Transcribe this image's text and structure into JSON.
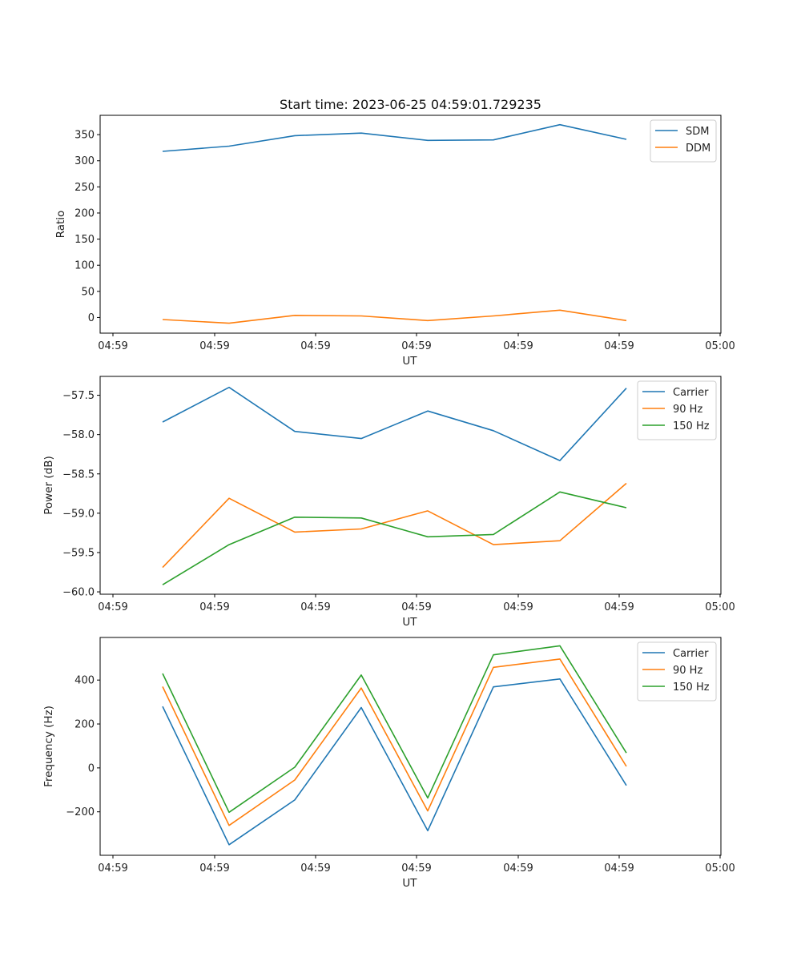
{
  "colors": {
    "blue": "#1f77b4",
    "orange": "#ff7f0e",
    "green": "#2ca02c"
  },
  "chart_data": [
    {
      "type": "line",
      "title": "Start time: 2023-06-25 04:59:01.729235",
      "xlabel": "UT",
      "ylabel": "Ratio",
      "x_tick_labels": [
        "04:59",
        "04:59",
        "04:59",
        "04:59",
        "04:59",
        "04:59",
        "04:59",
        "05:00"
      ],
      "ylim": [
        -30,
        387
      ],
      "y_ticks": [
        0,
        50,
        100,
        150,
        200,
        250,
        300,
        350
      ],
      "y_tick_labels": [
        "0",
        "50",
        "100",
        "150",
        "200",
        "250",
        "300",
        "350"
      ],
      "legend_position": "top-right",
      "series": [
        {
          "name": "SDM",
          "color": "#1f77b4",
          "values": [
            318,
            328,
            348,
            353,
            339,
            340,
            369,
            341
          ]
        },
        {
          "name": "DDM",
          "color": "#ff7f0e",
          "values": [
            -4,
            -11,
            4,
            3,
            -6,
            3,
            14,
            -6
          ]
        }
      ]
    },
    {
      "type": "line",
      "title": "",
      "xlabel": "UT",
      "ylabel": "Power (dB)",
      "x_tick_labels": [
        "04:59",
        "04:59",
        "04:59",
        "04:59",
        "04:59",
        "04:59",
        "04:59",
        "05:00"
      ],
      "ylim": [
        -60.03,
        -57.26
      ],
      "y_ticks": [
        -60.0,
        -59.5,
        -59.0,
        -58.5,
        -58.0,
        -57.5
      ],
      "y_tick_labels": [
        "−60.0",
        "−59.5",
        "−59.0",
        "−58.5",
        "−58.0",
        "−57.5"
      ],
      "legend_position": "top-right",
      "series": [
        {
          "name": "Carrier",
          "color": "#1f77b4",
          "values": [
            -57.84,
            -57.4,
            -57.96,
            -58.05,
            -57.7,
            -57.95,
            -58.33,
            -57.41
          ]
        },
        {
          "name": "90 Hz",
          "color": "#ff7f0e",
          "values": [
            -59.69,
            -58.81,
            -59.24,
            -59.2,
            -58.97,
            -59.4,
            -59.35,
            -58.62
          ]
        },
        {
          "name": "150 Hz",
          "color": "#2ca02c",
          "values": [
            -59.91,
            -59.4,
            -59.05,
            -59.06,
            -59.3,
            -59.27,
            -58.73,
            -58.93
          ]
        }
      ]
    },
    {
      "type": "line",
      "title": "",
      "xlabel": "UT",
      "ylabel": "Frequency (Hz)",
      "x_tick_labels": [
        "04:59",
        "04:59",
        "04:59",
        "04:59",
        "04:59",
        "04:59",
        "04:59",
        "05:00"
      ],
      "ylim": [
        -398,
        594
      ],
      "y_ticks": [
        -200,
        0,
        200,
        400
      ],
      "y_tick_labels": [
        "−200",
        "0",
        "200",
        "400"
      ],
      "legend_position": "top-right",
      "series": [
        {
          "name": "Carrier",
          "color": "#1f77b4",
          "values": [
            280,
            -350,
            -146,
            275,
            -286,
            369,
            405,
            -80
          ]
        },
        {
          "name": "90 Hz",
          "color": "#ff7f0e",
          "values": [
            370,
            -262,
            -55,
            364,
            -196,
            458,
            496,
            7
          ]
        },
        {
          "name": "150 Hz",
          "color": "#2ca02c",
          "values": [
            430,
            -202,
            3,
            423,
            -137,
            515,
            556,
            68
          ]
        }
      ]
    }
  ]
}
